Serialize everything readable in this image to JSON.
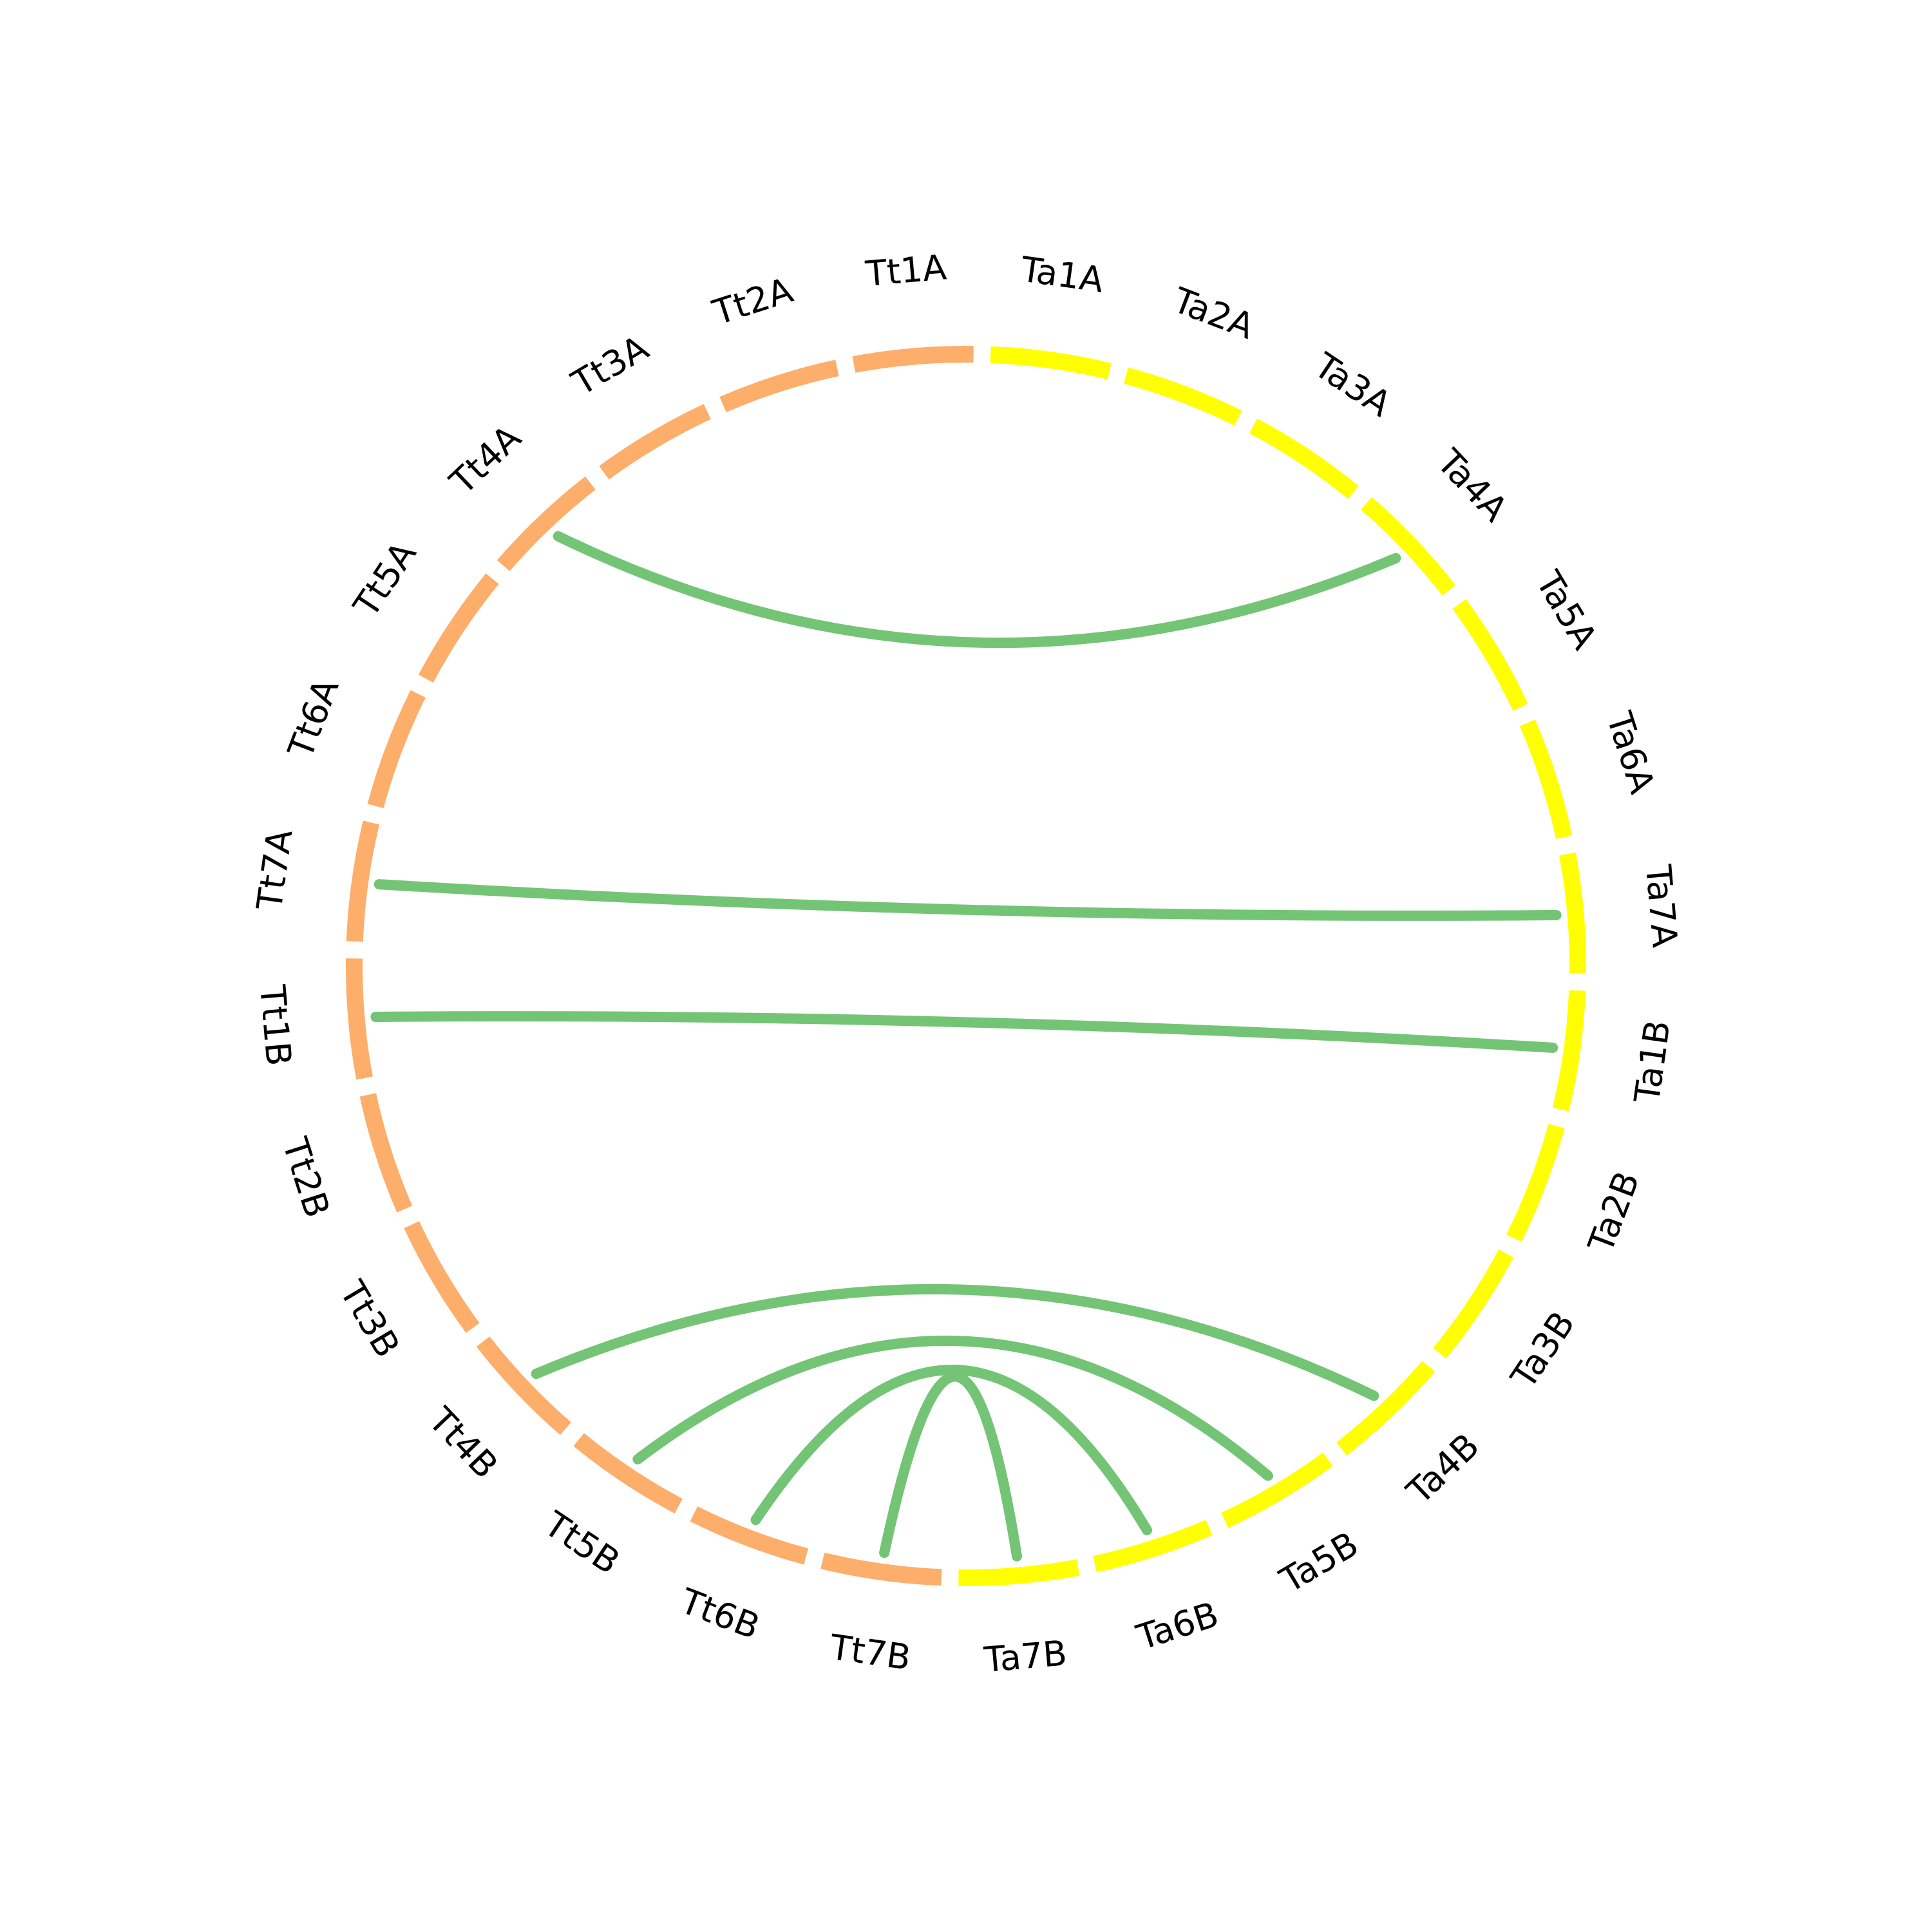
{
  "colors": {
    "tt_segment": "#FDAE6B",
    "ta_segment": "#FFFF00",
    "link": "#74C476",
    "label": "#000000",
    "background": "#FFFFFF"
  },
  "chart_data": {
    "type": "chord",
    "segments": [
      {
        "label": "Ta1A",
        "group": "Ta"
      },
      {
        "label": "Ta2A",
        "group": "Ta"
      },
      {
        "label": "Ta3A",
        "group": "Ta"
      },
      {
        "label": "Ta4A",
        "group": "Ta"
      },
      {
        "label": "Ta5A",
        "group": "Ta"
      },
      {
        "label": "Ta6A",
        "group": "Ta"
      },
      {
        "label": "Ta7A",
        "group": "Ta"
      },
      {
        "label": "Ta1B",
        "group": "Ta"
      },
      {
        "label": "Ta2B",
        "group": "Ta"
      },
      {
        "label": "Ta3B",
        "group": "Ta"
      },
      {
        "label": "Ta4B",
        "group": "Ta"
      },
      {
        "label": "Ta5B",
        "group": "Ta"
      },
      {
        "label": "Ta6B",
        "group": "Ta"
      },
      {
        "label": "Ta7B",
        "group": "Ta"
      },
      {
        "label": "Tt7B",
        "group": "Tt"
      },
      {
        "label": "Tt6B",
        "group": "Tt"
      },
      {
        "label": "Tt5B",
        "group": "Tt"
      },
      {
        "label": "Tt4B",
        "group": "Tt"
      },
      {
        "label": "Tt3B",
        "group": "Tt"
      },
      {
        "label": "Tt2B",
        "group": "Tt"
      },
      {
        "label": "Tt1B",
        "group": "Tt"
      },
      {
        "label": "Tt7A",
        "group": "Tt"
      },
      {
        "label": "Tt6A",
        "group": "Tt"
      },
      {
        "label": "Tt5A",
        "group": "Tt"
      },
      {
        "label": "Tt4A",
        "group": "Tt"
      },
      {
        "label": "Tt3A",
        "group": "Tt"
      },
      {
        "label": "Tt2A",
        "group": "Tt"
      },
      {
        "label": "Tt1A",
        "group": "Tt"
      }
    ],
    "links": [
      {
        "from": "Tt4A",
        "to": "Ta4A"
      },
      {
        "from": "Tt7A",
        "to": "Ta7A"
      },
      {
        "from": "Tt1B",
        "to": "Ta1B"
      },
      {
        "from": "Tt4B",
        "to": "Ta4B"
      },
      {
        "from": "Tt5B",
        "to": "Ta5B"
      },
      {
        "from": "Tt6B",
        "to": "Ta6B"
      },
      {
        "from": "Tt7B",
        "to": "Ta7B"
      }
    ]
  }
}
